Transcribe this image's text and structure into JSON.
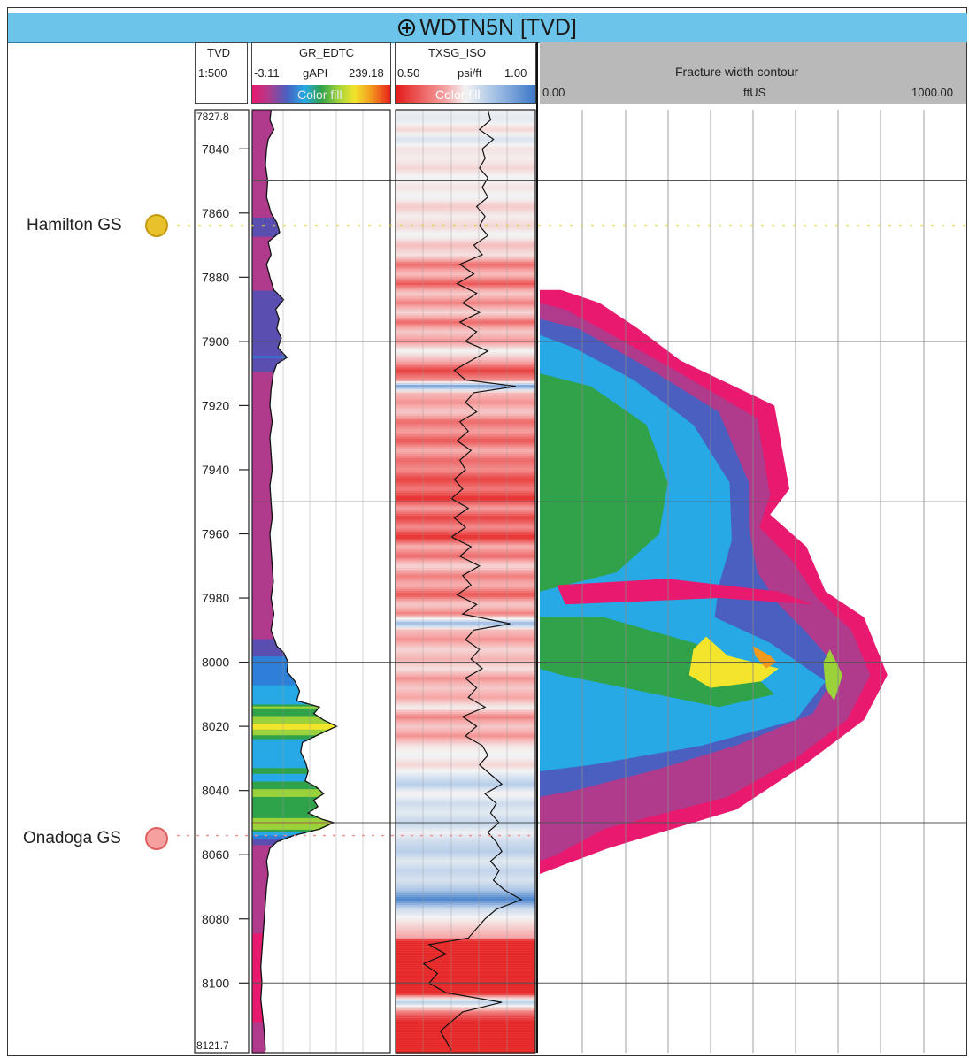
{
  "title": "WDTN5N [TVD]",
  "tracks": {
    "tvd": {
      "header": "TVD",
      "scale": "1:500"
    },
    "gr": {
      "header": "GR_EDTC",
      "min": "-3.11",
      "unit": "gAPI",
      "max": "239.18",
      "fill_label": "Color fill"
    },
    "txsg": {
      "header": "TXSG_ISO",
      "min": "0.50",
      "unit": "psi/ft",
      "max": "1.00",
      "fill_label": "Color fill"
    },
    "fracture": {
      "header": "Fracture width contour",
      "min": "0.00",
      "unit": "ftUS",
      "max": "1000.00"
    }
  },
  "formations": [
    {
      "name": "Hamilton GS",
      "depth": 7864,
      "icon": "formation-top-icon",
      "color": "#e8c22a"
    },
    {
      "name": "Onadoga GS",
      "depth": 8054,
      "icon": "formation-top-icon",
      "color": "#ef7b7b"
    }
  ],
  "colors": {
    "title_bar": "#6cc4ea",
    "gr_palette": [
      "#e8196e",
      "#b03b8c",
      "#5a4fb0",
      "#2e7fd8",
      "#27a9e6",
      "#2fa24a",
      "#9bd23a",
      "#f2e52c",
      "#f39a1e",
      "#e8221c"
    ],
    "txsg_palette": [
      "#e41a1a",
      "#f5a0a0",
      "#f3f3f3",
      "#a9c4e6",
      "#3c78c8"
    ]
  },
  "chart_data": {
    "type": "well_log",
    "depth_axis": {
      "label": "TVD",
      "range": [
        7827.8,
        8121.7
      ],
      "top_label": "7827.8",
      "bottom_label": "8121.7",
      "ticks": [
        7840,
        7860,
        7880,
        7900,
        7920,
        7940,
        7960,
        7980,
        8000,
        8020,
        8040,
        8060,
        8080,
        8100
      ]
    },
    "gr_curve": {
      "name": "GR_EDTC",
      "unit": "gAPI",
      "range": [
        -3.11,
        239.18
      ],
      "points": [
        [
          7828,
          30
        ],
        [
          7831,
          28
        ],
        [
          7834,
          35
        ],
        [
          7837,
          25
        ],
        [
          7840,
          22
        ],
        [
          7845,
          20
        ],
        [
          7850,
          24
        ],
        [
          7855,
          22
        ],
        [
          7860,
          30
        ],
        [
          7863,
          40
        ],
        [
          7866,
          45
        ],
        [
          7869,
          25
        ],
        [
          7873,
          30
        ],
        [
          7876,
          22
        ],
        [
          7880,
          28
        ],
        [
          7884,
          35
        ],
        [
          7887,
          52
        ],
        [
          7890,
          38
        ],
        [
          7893,
          44
        ],
        [
          7896,
          40
        ],
        [
          7899,
          48
        ],
        [
          7902,
          42
        ],
        [
          7905,
          58
        ],
        [
          7907,
          40
        ],
        [
          7910,
          34
        ],
        [
          7915,
          30
        ],
        [
          7920,
          28
        ],
        [
          7925,
          32
        ],
        [
          7930,
          28
        ],
        [
          7935,
          30
        ],
        [
          7940,
          32
        ],
        [
          7945,
          28
        ],
        [
          7950,
          30
        ],
        [
          7955,
          32
        ],
        [
          7960,
          28
        ],
        [
          7965,
          30
        ],
        [
          7970,
          32
        ],
        [
          7975,
          34
        ],
        [
          7980,
          30
        ],
        [
          7985,
          35
        ],
        [
          7990,
          30
        ],
        [
          7995,
          40
        ],
        [
          7997,
          52
        ],
        [
          8000,
          60
        ],
        [
          8003,
          58
        ],
        [
          8006,
          72
        ],
        [
          8009,
          80
        ],
        [
          8012,
          75
        ],
        [
          8014,
          115
        ],
        [
          8016,
          105
        ],
        [
          8018,
          122
        ],
        [
          8020,
          145
        ],
        [
          8022,
          120
        ],
        [
          8025,
          85
        ],
        [
          8028,
          82
        ],
        [
          8031,
          90
        ],
        [
          8034,
          95
        ],
        [
          8037,
          90
        ],
        [
          8039,
          110
        ],
        [
          8041,
          122
        ],
        [
          8043,
          105
        ],
        [
          8045,
          112
        ],
        [
          8047,
          95
        ],
        [
          8049,
          120
        ],
        [
          8050,
          140
        ],
        [
          8052,
          115
        ],
        [
          8054,
          70
        ],
        [
          8056,
          40
        ],
        [
          8058,
          28
        ],
        [
          8062,
          22
        ],
        [
          8066,
          25
        ],
        [
          8070,
          22
        ],
        [
          8075,
          20
        ],
        [
          8080,
          18
        ],
        [
          8085,
          16
        ],
        [
          8090,
          14
        ],
        [
          8095,
          12
        ],
        [
          8100,
          14
        ],
        [
          8105,
          12
        ],
        [
          8110,
          15
        ],
        [
          8115,
          18
        ],
        [
          8121,
          20
        ]
      ]
    },
    "txsg_curve": {
      "name": "TXSG_ISO",
      "unit": "psi/ft",
      "range": [
        0.5,
        1.0
      ],
      "points": [
        [
          7828,
          0.83
        ],
        [
          7831,
          0.84
        ],
        [
          7834,
          0.8
        ],
        [
          7837,
          0.85
        ],
        [
          7840,
          0.81
        ],
        [
          7843,
          0.82
        ],
        [
          7846,
          0.8
        ],
        [
          7849,
          0.83
        ],
        [
          7852,
          0.81
        ],
        [
          7855,
          0.83
        ],
        [
          7858,
          0.79
        ],
        [
          7861,
          0.82
        ],
        [
          7864,
          0.8
        ],
        [
          7867,
          0.83
        ],
        [
          7870,
          0.78
        ],
        [
          7873,
          0.81
        ],
        [
          7876,
          0.73
        ],
        [
          7879,
          0.78
        ],
        [
          7882,
          0.72
        ],
        [
          7885,
          0.79
        ],
        [
          7888,
          0.74
        ],
        [
          7891,
          0.8
        ],
        [
          7894,
          0.73
        ],
        [
          7897,
          0.79
        ],
        [
          7900,
          0.75
        ],
        [
          7903,
          0.83
        ],
        [
          7906,
          0.77
        ],
        [
          7909,
          0.71
        ],
        [
          7912,
          0.75
        ],
        [
          7914,
          0.93
        ],
        [
          7916,
          0.78
        ],
        [
          7919,
          0.75
        ],
        [
          7922,
          0.79
        ],
        [
          7925,
          0.73
        ],
        [
          7928,
          0.76
        ],
        [
          7931,
          0.72
        ],
        [
          7934,
          0.77
        ],
        [
          7937,
          0.73
        ],
        [
          7940,
          0.75
        ],
        [
          7943,
          0.71
        ],
        [
          7946,
          0.74
        ],
        [
          7949,
          0.7
        ],
        [
          7952,
          0.76
        ],
        [
          7955,
          0.71
        ],
        [
          7958,
          0.75
        ],
        [
          7961,
          0.7
        ],
        [
          7964,
          0.77
        ],
        [
          7967,
          0.73
        ],
        [
          7970,
          0.8
        ],
        [
          7973,
          0.74
        ],
        [
          7976,
          0.77
        ],
        [
          7979,
          0.72
        ],
        [
          7982,
          0.79
        ],
        [
          7985,
          0.74
        ],
        [
          7988,
          0.91
        ],
        [
          7990,
          0.78
        ],
        [
          7993,
          0.75
        ],
        [
          7996,
          0.8
        ],
        [
          7999,
          0.77
        ],
        [
          8002,
          0.81
        ],
        [
          8005,
          0.75
        ],
        [
          8008,
          0.79
        ],
        [
          8011,
          0.76
        ],
        [
          8014,
          0.82
        ],
        [
          8017,
          0.74
        ],
        [
          8020,
          0.79
        ],
        [
          8023,
          0.75
        ],
        [
          8026,
          0.81
        ],
        [
          8029,
          0.83
        ],
        [
          8032,
          0.8
        ],
        [
          8035,
          0.84
        ],
        [
          8038,
          0.88
        ],
        [
          8041,
          0.82
        ],
        [
          8044,
          0.86
        ],
        [
          8047,
          0.84
        ],
        [
          8050,
          0.87
        ],
        [
          8053,
          0.83
        ],
        [
          8056,
          0.86
        ],
        [
          8059,
          0.88
        ],
        [
          8062,
          0.84
        ],
        [
          8065,
          0.87
        ],
        [
          8068,
          0.85
        ],
        [
          8071,
          0.89
        ],
        [
          8074,
          0.95
        ],
        [
          8077,
          0.86
        ],
        [
          8080,
          0.82
        ],
        [
          8083,
          0.79
        ],
        [
          8086,
          0.76
        ],
        [
          8088,
          0.62
        ],
        [
          8091,
          0.68
        ],
        [
          8094,
          0.6
        ],
        [
          8097,
          0.65
        ],
        [
          8100,
          0.62
        ],
        [
          8103,
          0.68
        ],
        [
          8106,
          0.88
        ],
        [
          8109,
          0.74
        ],
        [
          8112,
          0.7
        ],
        [
          8115,
          0.66
        ],
        [
          8118,
          0.68
        ],
        [
          8121,
          0.7
        ]
      ]
    },
    "fracture_contour": {
      "name": "Fracture width contour",
      "unit": "ftUS",
      "range": [
        0,
        1000
      ],
      "levels": [
        "outer",
        "mid",
        "inner",
        "core",
        "peak"
      ],
      "colors": [
        "#e8196e",
        "#b03b8c",
        "#4a5fc0",
        "#27a9e6",
        "#2fa24a",
        "#f2e52c"
      ]
    }
  }
}
